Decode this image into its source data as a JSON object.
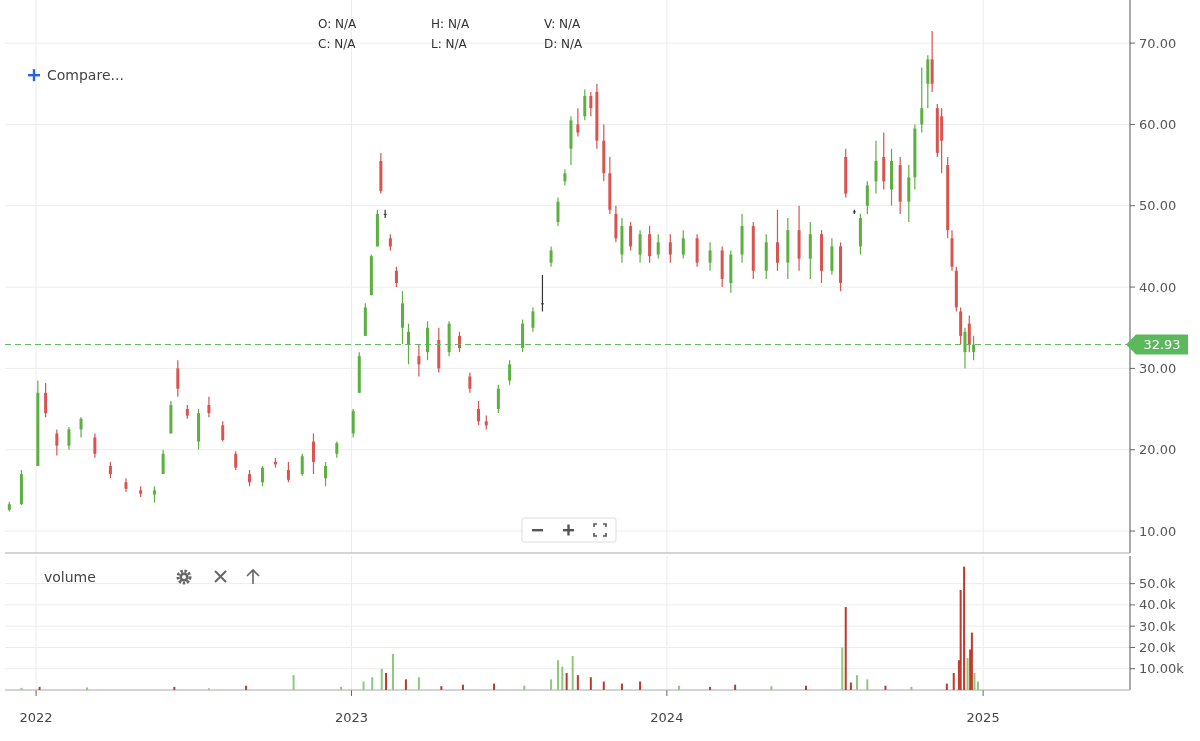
{
  "chart_data": [
    {
      "type": "candlestick",
      "annotations": [
        "O: N/A",
        "H: N/A",
        "V: N/A",
        "C: N/A",
        "L: N/A",
        "D: N/A",
        "Compare..."
      ],
      "x": [
        "2021-12-01",
        "2021-12-15",
        "2022-01-03",
        "2022-01-12",
        "2022-01-25",
        "2022-02-08",
        "2022-02-22",
        "2022-03-10",
        "2022-03-28",
        "2022-04-15",
        "2022-05-02",
        "2022-05-18",
        "2022-05-28",
        "2022-06-06",
        "2022-06-14",
        "2022-06-25",
        "2022-07-08",
        "2022-07-20",
        "2022-08-05",
        "2022-08-20",
        "2022-09-05",
        "2022-09-20",
        "2022-10-05",
        "2022-10-20",
        "2022-11-05",
        "2022-11-18",
        "2022-12-02",
        "2022-12-15",
        "2023-01-03",
        "2023-01-10",
        "2023-01-17",
        "2023-01-24",
        "2023-01-31",
        "2023-02-04",
        "2023-02-09",
        "2023-02-15",
        "2023-02-22",
        "2023-03-01",
        "2023-03-08",
        "2023-03-20",
        "2023-03-30",
        "2023-04-12",
        "2023-04-24",
        "2023-05-06",
        "2023-05-18",
        "2023-05-28",
        "2023-06-06",
        "2023-06-20",
        "2023-07-03",
        "2023-07-18",
        "2023-07-30",
        "2023-08-10",
        "2023-08-20",
        "2023-08-28",
        "2023-09-05",
        "2023-09-12",
        "2023-09-20",
        "2023-09-28",
        "2023-10-05",
        "2023-10-12",
        "2023-10-20",
        "2023-10-27",
        "2023-11-03",
        "2023-11-10",
        "2023-11-20",
        "2023-12-01",
        "2023-12-12",
        "2023-12-22",
        "2024-01-05",
        "2024-01-20",
        "2024-02-05",
        "2024-02-20",
        "2024-03-05",
        "2024-03-15",
        "2024-03-28",
        "2024-04-10",
        "2024-04-25",
        "2024-05-08",
        "2024-05-20",
        "2024-06-02",
        "2024-06-15",
        "2024-06-28",
        "2024-07-10",
        "2024-07-20",
        "2024-07-26",
        "2024-08-05",
        "2024-08-12",
        "2024-08-20",
        "2024-08-30",
        "2024-09-08",
        "2024-09-17",
        "2024-09-27",
        "2024-10-07",
        "2024-10-14",
        "2024-10-22",
        "2024-10-29",
        "2024-11-03",
        "2024-11-09",
        "2024-11-14",
        "2024-11-21",
        "2024-11-26",
        "2024-12-01",
        "2024-12-06",
        "2024-12-11",
        "2024-12-16",
        "2024-12-21"
      ],
      "ohlc": [
        [
          12.6,
          13.6,
          12.4,
          13.3
        ],
        [
          13.3,
          17.5,
          13.2,
          17
        ],
        [
          18,
          28.5,
          18,
          27
        ],
        [
          27,
          28.2,
          24,
          24.5
        ],
        [
          22,
          22.5,
          19.3,
          20.5
        ],
        [
          20.5,
          22.8,
          20,
          22.5
        ],
        [
          22.5,
          24,
          21.5,
          23.8
        ],
        [
          21.5,
          22,
          19,
          19.5
        ],
        [
          18,
          18.5,
          16.5,
          17
        ],
        [
          16,
          16.5,
          14.8,
          15.2
        ],
        [
          15,
          15.5,
          14.2,
          14.6
        ],
        [
          14.5,
          15.5,
          13.5,
          15
        ],
        [
          17,
          20,
          17,
          19.5
        ],
        [
          22,
          26,
          22,
          25.5
        ],
        [
          30,
          31,
          26.5,
          27.5
        ],
        [
          25,
          25.5,
          23.8,
          24.2
        ],
        [
          21,
          25,
          20,
          24.5
        ],
        [
          25.5,
          26.5,
          24,
          24.5
        ],
        [
          23,
          23.5,
          21,
          21.2
        ],
        [
          19.5,
          19.8,
          17.5,
          17.8
        ],
        [
          17,
          17.5,
          15.5,
          16
        ],
        [
          16,
          18,
          15.5,
          17.8
        ],
        [
          18.5,
          19,
          17.8,
          18.2
        ],
        [
          17.5,
          18.5,
          16,
          16.3
        ],
        [
          17,
          19.5,
          16.8,
          19.2
        ],
        [
          21,
          22,
          17,
          18.5
        ],
        [
          16.5,
          18.5,
          15.5,
          18
        ],
        [
          19.5,
          21,
          19,
          20.8
        ],
        [
          22,
          25,
          21.5,
          24.8
        ],
        [
          27,
          32,
          27,
          31.5
        ],
        [
          34,
          38,
          34,
          37.5
        ],
        [
          39,
          44,
          39,
          43.8
        ],
        [
          45,
          49.5,
          45,
          49
        ],
        [
          55.5,
          56.5,
          51.5,
          51.8
        ],
        [
          49,
          49.5,
          48.5,
          49
        ],
        [
          46,
          46.5,
          44.5,
          45
        ],
        [
          42,
          42.5,
          40,
          40.5
        ],
        [
          35,
          39.5,
          33,
          38
        ],
        [
          33,
          35.5,
          30.5,
          34.5
        ],
        [
          31.5,
          33,
          29,
          30.5
        ],
        [
          32,
          35.8,
          31,
          35
        ],
        [
          33.5,
          35,
          29.5,
          30
        ],
        [
          32,
          35.8,
          31.5,
          35.5
        ],
        [
          34,
          34.5,
          32,
          32.5
        ],
        [
          29,
          29.5,
          27,
          27.5
        ],
        [
          25,
          26,
          23,
          23.5
        ],
        [
          23.5,
          24.2,
          22.5,
          23
        ],
        [
          25,
          28,
          24.5,
          27.5
        ],
        [
          28.5,
          31,
          28,
          30.5
        ],
        [
          32.5,
          36,
          32,
          35.5
        ],
        [
          35,
          37.5,
          34.5,
          37
        ],
        [
          38,
          41.5,
          37,
          38
        ],
        [
          43,
          45,
          42.5,
          44.5
        ],
        [
          48,
          51,
          47.5,
          50.5
        ],
        [
          53,
          54.5,
          52.5,
          54
        ],
        [
          57,
          61,
          55,
          60.5
        ],
        [
          60,
          62,
          58.5,
          59
        ],
        [
          61,
          64.3,
          60.5,
          63.5
        ],
        [
          63.5,
          64,
          61,
          62
        ],
        [
          64,
          65,
          57,
          58
        ],
        [
          58,
          60,
          53,
          54
        ],
        [
          54,
          56,
          49,
          49.5
        ],
        [
          49,
          50,
          45.5,
          46
        ],
        [
          44,
          48.5,
          43,
          47.5
        ],
        [
          47.5,
          48,
          44.5,
          45
        ],
        [
          44,
          47,
          43,
          46.5
        ],
        [
          46.5,
          47.5,
          43,
          43.8
        ],
        [
          44,
          46.5,
          43.5,
          45.5
        ],
        [
          45.5,
          46.5,
          43,
          44
        ],
        [
          44,
          47,
          43.5,
          46
        ],
        [
          46,
          46.5,
          42.5,
          43
        ],
        [
          43,
          45.5,
          42,
          44.5
        ],
        [
          44.5,
          45,
          40,
          41
        ],
        [
          40.5,
          44.5,
          39.3,
          44
        ],
        [
          44,
          49,
          43,
          47.5
        ],
        [
          47.5,
          48,
          41,
          42
        ],
        [
          42,
          46.5,
          41,
          45.5
        ],
        [
          45.5,
          49.5,
          42,
          43
        ],
        [
          43,
          48.5,
          41,
          47
        ],
        [
          47,
          50,
          42,
          43.5
        ],
        [
          43.5,
          48,
          41,
          46.5
        ],
        [
          46.5,
          47,
          40.5,
          42
        ],
        [
          42,
          46,
          41.5,
          45
        ],
        [
          45,
          45.5,
          39.5,
          40.5
        ],
        [
          56,
          57,
          51,
          51.5
        ],
        [
          49.3,
          49.5,
          49,
          49.3
        ],
        [
          45,
          49,
          44,
          48.5
        ],
        [
          50,
          53,
          49,
          52.5
        ],
        [
          53,
          58,
          51.5,
          55.5
        ],
        [
          56,
          59,
          52,
          53
        ],
        [
          52,
          57,
          50,
          55.5
        ],
        [
          55,
          56,
          49,
          50.5
        ],
        [
          50.5,
          55,
          48,
          53.5
        ],
        [
          53.5,
          60,
          52,
          59.5
        ],
        [
          60,
          67,
          59,
          62
        ],
        [
          65,
          68.5,
          62,
          68
        ],
        [
          68,
          71.5,
          64,
          65
        ],
        [
          62,
          62.5,
          56,
          56.5
        ],
        [
          61,
          62,
          54,
          58
        ],
        [
          55,
          56,
          46,
          47
        ],
        [
          46,
          47,
          42,
          42.5
        ],
        [
          42,
          42.5,
          37,
          37.5
        ],
        [
          37,
          37.5,
          33,
          34
        ],
        [
          32,
          35,
          30,
          34.5
        ],
        [
          35.5,
          36.5,
          32,
          33
        ],
        [
          32,
          34,
          31,
          32.93
        ]
      ],
      "colors": [
        "#5cb040",
        "#5cb040",
        "#5cb040",
        "#d9534f",
        "#d9534f",
        "#5cb040",
        "#5cb040",
        "#d9534f",
        "#d9534f",
        "#d9534f",
        "#d9534f",
        "#5cb040",
        "#5cb040",
        "#5cb040",
        "#d9534f",
        "#d9534f",
        "#5cb040",
        "#d9534f",
        "#d9534f",
        "#d9534f",
        "#d9534f",
        "#5cb040",
        "#d9534f",
        "#d9534f",
        "#5cb040",
        "#d9534f",
        "#5cb040",
        "#5cb040",
        "#5cb040",
        "#5cb040",
        "#5cb040",
        "#5cb040",
        "#5cb040",
        "#d9534f",
        "#333333",
        "#d9534f",
        "#d9534f",
        "#5cb040",
        "#5cb040",
        "#d9534f",
        "#5cb040",
        "#d9534f",
        "#5cb040",
        "#d9534f",
        "#d9534f",
        "#d9534f",
        "#d9534f",
        "#5cb040",
        "#5cb040",
        "#5cb040",
        "#5cb040",
        "#333333",
        "#5cb040",
        "#5cb040",
        "#5cb040",
        "#5cb040",
        "#d9534f",
        "#5cb040",
        "#d9534f",
        "#d9534f",
        "#d9534f",
        "#d9534f",
        "#d9534f",
        "#5cb040",
        "#d9534f",
        "#5cb040",
        "#d9534f",
        "#5cb040",
        "#d9534f",
        "#5cb040",
        "#d9534f",
        "#5cb040",
        "#d9534f",
        "#5cb040",
        "#5cb040",
        "#d9534f",
        "#5cb040",
        "#d9534f",
        "#5cb040",
        "#d9534f",
        "#5cb040",
        "#d9534f",
        "#5cb040",
        "#d9534f",
        "#d9534f",
        "#333333",
        "#5cb040",
        "#5cb040",
        "#5cb040",
        "#d9534f",
        "#5cb040",
        "#d9534f",
        "#5cb040",
        "#5cb040",
        "#5cb040",
        "#5cb040",
        "#d9534f",
        "#d9534f",
        "#d9534f",
        "#d9534f",
        "#d9534f",
        "#d9534f",
        "#d9534f",
        "#5cb040",
        "#d9534f",
        "#5cb040"
      ],
      "xlim": [
        "2021-11-26",
        "2025-06-20"
      ],
      "ylim": [
        7.3,
        75.3
      ],
      "yticks": [
        {
          "value": 10,
          "label": "10.00"
        },
        {
          "value": 20,
          "label": "20.00"
        },
        {
          "value": 30,
          "label": "30.00"
        },
        {
          "value": 40,
          "label": "40.00"
        },
        {
          "value": 50,
          "label": "50.00"
        },
        {
          "value": 60,
          "label": "60.00"
        },
        {
          "value": 70,
          "label": "70.00"
        }
      ],
      "xticks": [
        "2022",
        "2023",
        "2024",
        "2025"
      ],
      "tick_labels": "y",
      "grid": true,
      "ref_lines": [
        {
          "axis": "y",
          "value": 32.93,
          "label": "32.93",
          "color": "#5cb85c",
          "line_style": "dashed"
        }
      ]
    },
    {
      "type": "bar",
      "title": "volume",
      "x": [
        "2021-12-15",
        "2022-01-05",
        "2022-03-01",
        "2022-06-10",
        "2022-07-20",
        "2022-09-01",
        "2022-10-26",
        "2022-12-20",
        "2023-01-15",
        "2023-01-25",
        "2023-02-05",
        "2023-02-10",
        "2023-02-18",
        "2023-03-05",
        "2023-03-20",
        "2023-04-15",
        "2023-05-10",
        "2023-06-15",
        "2023-07-20",
        "2023-08-20",
        "2023-08-28",
        "2023-09-02",
        "2023-09-07",
        "2023-09-14",
        "2023-09-20",
        "2023-10-05",
        "2023-10-20",
        "2023-11-10",
        "2023-12-01",
        "2024-01-15",
        "2024-02-20",
        "2024-03-20",
        "2024-05-01",
        "2024-06-10",
        "2024-07-22",
        "2024-07-26",
        "2024-08-01",
        "2024-08-08",
        "2024-08-20",
        "2024-09-10",
        "2024-10-10",
        "2024-11-20",
        "2024-11-28",
        "2024-12-04",
        "2024-12-06",
        "2024-12-10",
        "2024-12-14",
        "2024-12-17",
        "2024-12-19",
        "2024-12-22",
        "2024-12-26"
      ],
      "values": [
        1000,
        1500,
        1200,
        1500,
        800,
        2000,
        7000,
        1500,
        4000,
        6000,
        10000,
        8000,
        17000,
        5000,
        6000,
        1800,
        2500,
        3000,
        2000,
        5000,
        14000,
        11000,
        8000,
        16000,
        7000,
        6000,
        4000,
        3000,
        4000,
        2000,
        1500,
        2500,
        1800,
        2000,
        20000,
        39000,
        3500,
        7000,
        5000,
        2000,
        1500,
        3000,
        8000,
        14000,
        47000,
        58000,
        15000,
        19000,
        27000,
        8000,
        4000
      ],
      "colors": [
        "#8cc97a",
        "#c0392b",
        "#8cc97a",
        "#c0392b",
        "#8cc97a",
        "#c0392b",
        "#8cc97a",
        "#8cc97a",
        "#8cc97a",
        "#8cc97a",
        "#8cc97a",
        "#c0392b",
        "#8cc97a",
        "#c0392b",
        "#8cc97a",
        "#c0392b",
        "#c0392b",
        "#c0392b",
        "#8cc97a",
        "#8cc97a",
        "#8cc97a",
        "#8cc97a",
        "#c0392b",
        "#8cc97a",
        "#c0392b",
        "#c0392b",
        "#c0392b",
        "#c0392b",
        "#c0392b",
        "#8cc97a",
        "#c0392b",
        "#c0392b",
        "#8cc97a",
        "#c0392b",
        "#8cc97a",
        "#c0392b",
        "#c0392b",
        "#8cc97a",
        "#8cc97a",
        "#c0392b",
        "#8cc97a",
        "#c0392b",
        "#c0392b",
        "#c0392b",
        "#c0392b",
        "#c0392b",
        "#8cc97a",
        "#c0392b",
        "#c0392b",
        "#8cc97a",
        "#8cc97a"
      ],
      "xlim": [
        "2021-11-26",
        "2025-06-20"
      ],
      "xticks": [
        "2022",
        "2023",
        "2024",
        "2025"
      ],
      "ylim": [
        0,
        63000
      ],
      "yticks": [
        {
          "value": 10000,
          "label": "10.00k"
        },
        {
          "value": 20000,
          "label": "20.0k"
        },
        {
          "value": 30000,
          "label": "30.0k"
        },
        {
          "value": 40000,
          "label": "40.0k"
        },
        {
          "value": 50000,
          "label": "50.0k"
        }
      ],
      "grid": true
    }
  ]
}
